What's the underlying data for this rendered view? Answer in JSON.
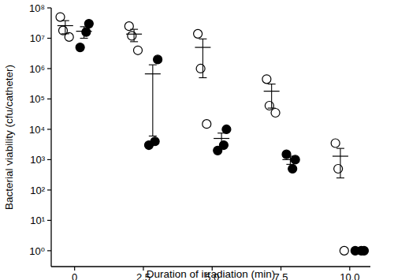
{
  "chart_data": {
    "type": "scatter",
    "x_label": "Duration of irradiation (min)",
    "y_label": "Bacterial viability (cfu/catheter)",
    "x": [
      0,
      2.5,
      5,
      7.5,
      10
    ],
    "xlim": [
      -0.85,
      10.75
    ],
    "xticks": [
      0,
      2.5,
      {
        "value": 5,
        "label": "5.0"
      },
      {
        "value": 7.5,
        "label": "7.5"
      },
      {
        "value": 10,
        "label": "10.0"
      }
    ],
    "ylim": [
      0.3,
      100000000
    ],
    "yticks": [
      {
        "value": 1,
        "label": "10⁰"
      },
      {
        "value": 10,
        "label": "10¹"
      },
      {
        "value": 100,
        "label": "10²"
      },
      {
        "value": 1000,
        "label": "10³"
      },
      {
        "value": 10000,
        "label": "10⁴"
      },
      {
        "value": 100000,
        "label": "10⁵"
      },
      {
        "value": 1000000,
        "label": "10⁶"
      },
      {
        "value": 10000000,
        "label": "10⁷"
      },
      {
        "value": 100000000,
        "label": "10⁸"
      }
    ],
    "log": "y",
    "grid": false,
    "series": [
      {
        "color": "#000000",
        "marker": "open-circle",
        "values": [
          [
            11000000,
            18000000,
            50000000
          ],
          [
            4000000,
            12000000,
            25000000
          ],
          [
            15000,
            1000000,
            14000000
          ],
          [
            35000,
            60000,
            450000
          ],
          [
            1,
            500,
            3500
          ]
        ],
        "mean": [
          26000000,
          13700000,
          5000000,
          180000,
          1300
        ],
        "error": [
          12000000,
          6000000,
          4500000,
          130000,
          1050
        ]
      },
      {
        "color": "#000000",
        "marker": "filled-circle",
        "values": [
          [
            5000000,
            16000000,
            30000000
          ],
          [
            3000,
            4000,
            2000000
          ],
          [
            2000,
            3000,
            10000
          ],
          [
            1500,
            500,
            1000
          ],
          [
            1,
            1,
            1
          ]
        ],
        "mean": [
          17000000,
          670000,
          5000,
          1000,
          1
        ],
        "error": [
          7000000,
          664000,
          2500,
          300,
          0
        ]
      }
    ]
  }
}
